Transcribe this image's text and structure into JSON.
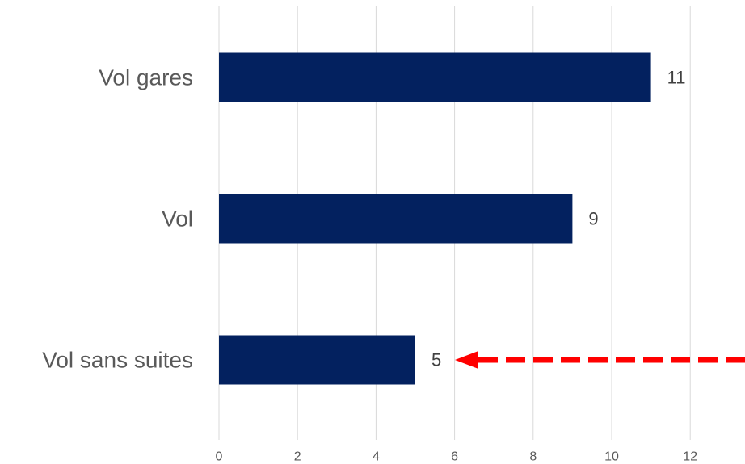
{
  "chart_data": {
    "type": "bar",
    "orientation": "horizontal",
    "categories": [
      "Vol gares",
      "Vol",
      "Vol sans suites"
    ],
    "values": [
      11,
      9,
      5
    ],
    "data_labels": [
      "11",
      "9",
      "5"
    ],
    "title": "",
    "xlabel": "",
    "ylabel": "",
    "xlim": [
      0,
      13
    ],
    "x_ticks": [
      0,
      2,
      4,
      6,
      8,
      10,
      12
    ],
    "x_tick_labels": [
      "0",
      "2",
      "4",
      "6",
      "8",
      "10",
      "12"
    ],
    "grid": true,
    "bar_color": "#03215f",
    "annotation": {
      "type": "dashed-arrow",
      "color": "#ff0000",
      "points_to": "Vol sans suites"
    }
  }
}
